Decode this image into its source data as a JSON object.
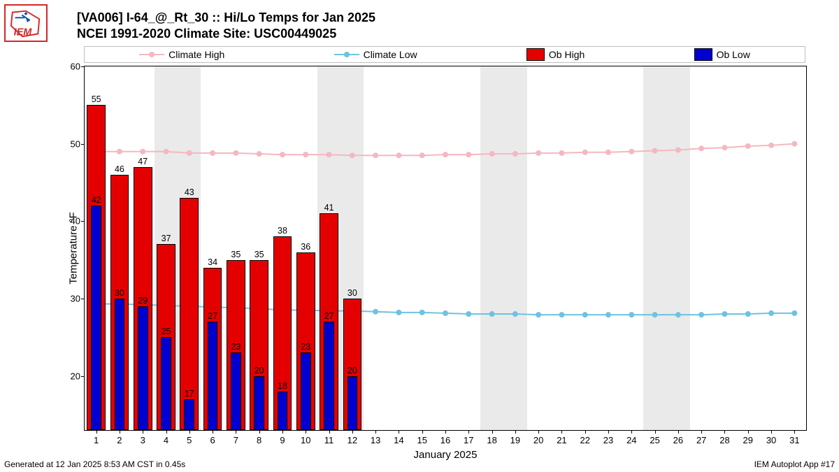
{
  "logo_text": "IEM",
  "title_line1": "[VA006] I-64_@_Rt_30 :: Hi/Lo Temps for Jan 2025",
  "title_line2": "NCEI 1991-2020 Climate Site: USC00449025",
  "footer_left": "Generated at 12 Jan 2025 8:53 AM CST in 0.45s",
  "footer_right": "IEM Autoplot App #17",
  "legend": {
    "items": [
      {
        "label": "Climate High",
        "type": "line",
        "color": "#f5b7c1"
      },
      {
        "label": "Climate Low",
        "type": "line",
        "color": "#6fc2e0"
      },
      {
        "label": "Ob High",
        "type": "swatch",
        "color": "#e50000"
      },
      {
        "label": "Ob Low",
        "type": "swatch",
        "color": "#0000d0"
      }
    ]
  },
  "chart": {
    "type": "bar+line",
    "background_color": "#ffffff",
    "shaded_color": "#eaeaea",
    "plot_border_color": "#000000",
    "grid_color": "#c0c0c0",
    "x_axis_label": "January 2025",
    "y_axis_label": "Temperature °F",
    "xlim": [
      0.5,
      31.5
    ],
    "ylim": [
      13,
      60
    ],
    "yticks": [
      20,
      30,
      40,
      50,
      60
    ],
    "xticks": [
      1,
      2,
      3,
      4,
      5,
      6,
      7,
      8,
      9,
      10,
      11,
      12,
      13,
      14,
      15,
      16,
      17,
      18,
      19,
      20,
      21,
      22,
      23,
      24,
      25,
      26,
      27,
      28,
      29,
      30,
      31
    ],
    "shaded_weekend_ranges": [
      [
        3.5,
        5.5
      ],
      [
        10.5,
        12.5
      ],
      [
        17.5,
        19.5
      ],
      [
        24.5,
        26.5
      ]
    ],
    "bar_group_width_days": 0.8,
    "ob_high": {
      "color": "#e50000",
      "values": [
        {
          "day": 1,
          "v": 55
        },
        {
          "day": 2,
          "v": 46
        },
        {
          "day": 3,
          "v": 47
        },
        {
          "day": 4,
          "v": 37
        },
        {
          "day": 5,
          "v": 43
        },
        {
          "day": 6,
          "v": 34
        },
        {
          "day": 7,
          "v": 35
        },
        {
          "day": 8,
          "v": 35
        },
        {
          "day": 9,
          "v": 38
        },
        {
          "day": 10,
          "v": 36
        },
        {
          "day": 11,
          "v": 41
        },
        {
          "day": 12,
          "v": 30
        }
      ]
    },
    "ob_low": {
      "color": "#0000d0",
      "values": [
        {
          "day": 1,
          "v": 42
        },
        {
          "day": 2,
          "v": 30
        },
        {
          "day": 3,
          "v": 29
        },
        {
          "day": 4,
          "v": 25
        },
        {
          "day": 5,
          "v": 17
        },
        {
          "day": 6,
          "v": 27
        },
        {
          "day": 7,
          "v": 23
        },
        {
          "day": 8,
          "v": 20
        },
        {
          "day": 9,
          "v": 18
        },
        {
          "day": 10,
          "v": 23
        },
        {
          "day": 11,
          "v": 27
        },
        {
          "day": 12,
          "v": 20
        }
      ]
    },
    "climate_high": {
      "color": "#f5b7c1",
      "values": [
        49,
        49,
        49,
        49,
        48.8,
        48.8,
        48.8,
        48.7,
        48.6,
        48.6,
        48.6,
        48.5,
        48.5,
        48.5,
        48.5,
        48.6,
        48.6,
        48.7,
        48.7,
        48.8,
        48.8,
        48.9,
        48.9,
        49,
        49.1,
        49.2,
        49.4,
        49.5,
        49.7,
        49.8,
        50
      ]
    },
    "climate_low": {
      "color": "#6fc2e0",
      "values": [
        29.3,
        29.3,
        29.2,
        29.1,
        29,
        28.9,
        28.8,
        28.7,
        28.5,
        28.5,
        28.4,
        28.4,
        28.3,
        28.2,
        28.2,
        28.1,
        28,
        28,
        28,
        27.9,
        27.9,
        27.9,
        27.9,
        27.9,
        27.9,
        27.9,
        27.9,
        28,
        28,
        28.1,
        28.1
      ]
    },
    "title_fontsize": 18,
    "tick_fontsize": 13,
    "label_fontsize": 15,
    "barlabel_fontsize": 12.5,
    "line_width": 2,
    "marker_radius": 4
  }
}
